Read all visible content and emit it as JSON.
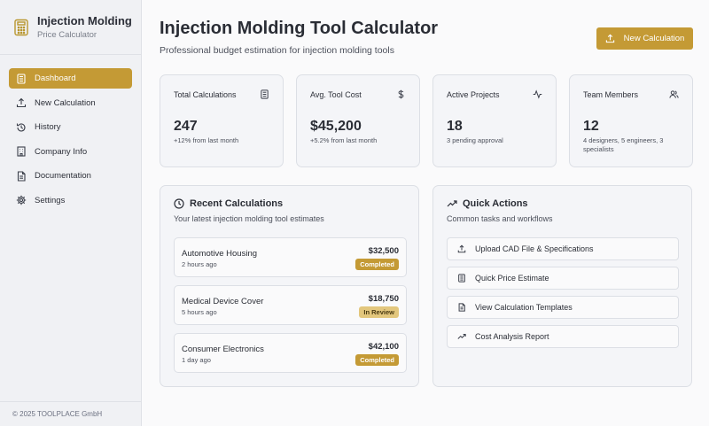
{
  "sidebar": {
    "brand_title": "Injection Molding",
    "brand_subtitle": "Price Calculator",
    "brand_icon": "calculator-icon",
    "items": [
      {
        "label": "Dashboard",
        "icon": "dashboard-icon",
        "active": true
      },
      {
        "label": "New Calculation",
        "icon": "upload-icon"
      },
      {
        "label": "History",
        "icon": "history-icon"
      },
      {
        "label": "Company Info",
        "icon": "building-icon"
      },
      {
        "label": "Documentation",
        "icon": "document-icon"
      },
      {
        "label": "Settings",
        "icon": "gear-icon"
      }
    ],
    "footer": "© 2025 TOOLPLACE GmbH"
  },
  "header": {
    "title": "Injection Molding Tool Calculator",
    "subtitle": "Professional budget estimation for injection molding tools",
    "new_button": "New Calculation"
  },
  "stats": [
    {
      "label": "Total Calculations",
      "value": "247",
      "note": "+12% from last month",
      "icon": "calculator-icon"
    },
    {
      "label": "Avg. Tool Cost",
      "value": "$45,200",
      "note": "+5.2% from last month",
      "icon": "dollar-icon"
    },
    {
      "label": "Active Projects",
      "value": "18",
      "note": "3 pending approval",
      "icon": "activity-icon"
    },
    {
      "label": "Team Members",
      "value": "12",
      "note": "4 designers, 5 engineers, 3 specialists",
      "icon": "users-icon"
    }
  ],
  "recent": {
    "title": "Recent Calculations",
    "subtitle": "Your latest injection molding tool estimates",
    "items": [
      {
        "name": "Automotive Housing",
        "time": "2 hours ago",
        "price": "$32,500",
        "status": "Completed"
      },
      {
        "name": "Medical Device Cover",
        "time": "5 hours ago",
        "price": "$18,750",
        "status": "In Review"
      },
      {
        "name": "Consumer Electronics",
        "time": "1 day ago",
        "price": "$42,100",
        "status": "Completed"
      }
    ]
  },
  "quick": {
    "title": "Quick Actions",
    "subtitle": "Common tasks and workflows",
    "actions": [
      {
        "label": "Upload CAD File & Specifications",
        "icon": "upload-icon"
      },
      {
        "label": "Quick Price Estimate",
        "icon": "calculator-icon"
      },
      {
        "label": "View Calculation Templates",
        "icon": "document-icon"
      },
      {
        "label": "Cost Analysis Report",
        "icon": "trending-up-icon"
      }
    ]
  },
  "colors": {
    "accent": "#c49a35",
    "badge_review": "#e3c77d"
  }
}
